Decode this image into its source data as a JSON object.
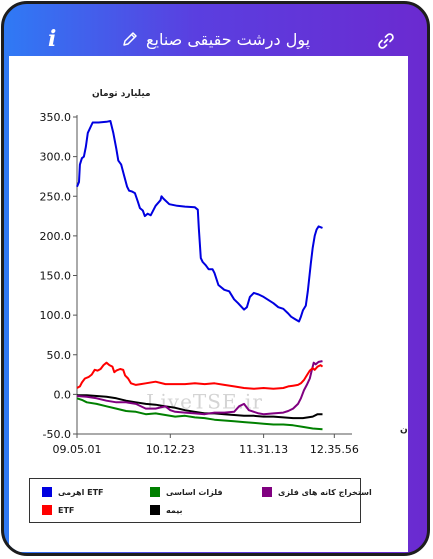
{
  "header": {
    "title": "پول درشت حقیقی صنایع",
    "info_glyph": "i",
    "icons": [
      "info-icon",
      "pencil-icon",
      "link-icon"
    ]
  },
  "colors": {
    "header_gradient_start": "#2f7af5",
    "header_gradient_end": "#6b2ad0",
    "etf_stocks": "#0000e0",
    "etf": "#ff0000",
    "basic_metals": "#008000",
    "insurance": "#000000",
    "metal_mining": "#800080"
  },
  "watermark": "LiveTSE.ir",
  "chart_data": {
    "type": "line",
    "title": "",
    "ylabel": "میلیارد تومان",
    "xlabel": "زمان",
    "ylim": [
      -50,
      350
    ],
    "yticks": [
      "350.0",
      "300.0",
      "250.0",
      "200.0",
      "150.0",
      "100.0",
      "50.0",
      "0.0",
      "-50.0"
    ],
    "xlim": [
      0,
      280
    ],
    "xticks": [
      {
        "x": 0,
        "label": "09.05.01"
      },
      {
        "x": 95,
        "label": "10.12.23"
      },
      {
        "x": 190,
        "label": "11.31.13"
      },
      {
        "x": 262,
        "label": "12.35.56"
      }
    ],
    "grid": false,
    "legend_placement": "bottom",
    "series": [
      {
        "name": "ETF اهرمی",
        "color": "#0000e0",
        "points": [
          [
            0,
            262
          ],
          [
            2,
            268
          ],
          [
            3,
            290
          ],
          [
            5,
            298
          ],
          [
            7,
            300
          ],
          [
            9,
            312
          ],
          [
            11,
            330
          ],
          [
            14,
            338
          ],
          [
            16,
            343
          ],
          [
            22,
            343
          ],
          [
            30,
            344
          ],
          [
            34,
            345
          ],
          [
            37,
            330
          ],
          [
            40,
            310
          ],
          [
            42,
            295
          ],
          [
            45,
            290
          ],
          [
            48,
            276
          ],
          [
            51,
            262
          ],
          [
            53,
            257
          ],
          [
            56,
            256
          ],
          [
            59,
            254
          ],
          [
            62,
            243
          ],
          [
            64,
            235
          ],
          [
            67,
            232
          ],
          [
            69,
            225
          ],
          [
            72,
            228
          ],
          [
            75,
            226
          ],
          [
            80,
            238
          ],
          [
            85,
            245
          ],
          [
            86,
            250
          ],
          [
            88,
            247
          ],
          [
            94,
            240
          ],
          [
            102,
            238
          ],
          [
            110,
            237
          ],
          [
            120,
            236
          ],
          [
            123,
            233
          ],
          [
            124,
            210
          ],
          [
            126,
            172
          ],
          [
            128,
            167
          ],
          [
            131,
            163
          ],
          [
            134,
            158
          ],
          [
            138,
            158
          ],
          [
            140,
            153
          ],
          [
            144,
            138
          ],
          [
            150,
            132
          ],
          [
            155,
            130
          ],
          [
            160,
            120
          ],
          [
            164,
            115
          ],
          [
            170,
            107
          ],
          [
            173,
            110
          ],
          [
            176,
            123
          ],
          [
            180,
            128
          ],
          [
            185,
            126
          ],
          [
            190,
            123
          ],
          [
            195,
            119
          ],
          [
            200,
            115
          ],
          [
            205,
            110
          ],
          [
            210,
            108
          ],
          [
            215,
            102
          ],
          [
            218,
            98
          ],
          [
            222,
            95
          ],
          [
            226,
            92
          ],
          [
            228,
            98
          ],
          [
            230,
            106
          ],
          [
            233,
            112
          ],
          [
            235,
            130
          ],
          [
            238,
            165
          ],
          [
            240,
            185
          ],
          [
            242,
            200
          ],
          [
            244,
            208
          ],
          [
            246,
            212
          ],
          [
            250,
            210
          ]
        ]
      },
      {
        "name": "ETF",
        "color": "#ff0000",
        "points": [
          [
            0,
            8
          ],
          [
            3,
            10
          ],
          [
            5,
            15
          ],
          [
            8,
            20
          ],
          [
            12,
            22
          ],
          [
            15,
            25
          ],
          [
            18,
            31
          ],
          [
            21,
            30
          ],
          [
            24,
            32
          ],
          [
            27,
            37
          ],
          [
            30,
            40
          ],
          [
            33,
            37
          ],
          [
            36,
            35
          ],
          [
            38,
            28
          ],
          [
            40,
            30
          ],
          [
            44,
            32
          ],
          [
            47,
            31
          ],
          [
            49,
            24
          ],
          [
            52,
            20
          ],
          [
            55,
            14
          ],
          [
            60,
            12
          ],
          [
            65,
            13
          ],
          [
            70,
            14
          ],
          [
            80,
            16
          ],
          [
            90,
            13
          ],
          [
            100,
            13
          ],
          [
            110,
            13
          ],
          [
            120,
            14
          ],
          [
            130,
            13
          ],
          [
            140,
            14
          ],
          [
            150,
            12
          ],
          [
            160,
            10
          ],
          [
            170,
            8
          ],
          [
            180,
            7
          ],
          [
            190,
            8
          ],
          [
            200,
            7
          ],
          [
            210,
            8
          ],
          [
            215,
            10
          ],
          [
            220,
            11
          ],
          [
            225,
            12
          ],
          [
            228,
            14
          ],
          [
            231,
            18
          ],
          [
            234,
            24
          ],
          [
            237,
            30
          ],
          [
            240,
            33
          ],
          [
            242,
            31
          ],
          [
            245,
            35
          ],
          [
            248,
            37
          ],
          [
            250,
            35
          ]
        ]
      },
      {
        "name": "فلزات اساسی",
        "color": "#008000",
        "points": [
          [
            0,
            -5
          ],
          [
            5,
            -7
          ],
          [
            10,
            -10
          ],
          [
            20,
            -12
          ],
          [
            30,
            -15
          ],
          [
            40,
            -18
          ],
          [
            50,
            -21
          ],
          [
            60,
            -22
          ],
          [
            70,
            -25
          ],
          [
            80,
            -24
          ],
          [
            90,
            -26
          ],
          [
            100,
            -28
          ],
          [
            110,
            -27
          ],
          [
            120,
            -29
          ],
          [
            130,
            -30
          ],
          [
            140,
            -32
          ],
          [
            150,
            -33
          ],
          [
            160,
            -34
          ],
          [
            170,
            -35
          ],
          [
            180,
            -36
          ],
          [
            190,
            -37
          ],
          [
            200,
            -38
          ],
          [
            210,
            -38
          ],
          [
            220,
            -39
          ],
          [
            230,
            -41
          ],
          [
            240,
            -43
          ],
          [
            250,
            -44
          ]
        ]
      },
      {
        "name": "بیمه",
        "color": "#000000",
        "points": [
          [
            0,
            -1
          ],
          [
            10,
            -1
          ],
          [
            20,
            -2
          ],
          [
            30,
            -3
          ],
          [
            40,
            -5
          ],
          [
            50,
            -8
          ],
          [
            60,
            -10
          ],
          [
            70,
            -12
          ],
          [
            80,
            -13
          ],
          [
            90,
            -15
          ],
          [
            100,
            -17
          ],
          [
            110,
            -20
          ],
          [
            120,
            -22
          ],
          [
            130,
            -24
          ],
          [
            140,
            -24
          ],
          [
            150,
            -25
          ],
          [
            160,
            -26
          ],
          [
            170,
            -27
          ],
          [
            180,
            -27
          ],
          [
            190,
            -28
          ],
          [
            200,
            -28
          ],
          [
            210,
            -29
          ],
          [
            220,
            -30
          ],
          [
            230,
            -30
          ],
          [
            240,
            -28
          ],
          [
            245,
            -25
          ],
          [
            250,
            -25
          ]
        ]
      },
      {
        "name": "استخراج کانه های فلزی",
        "color": "#800080",
        "points": [
          [
            0,
            -2
          ],
          [
            10,
            -3
          ],
          [
            20,
            -5
          ],
          [
            30,
            -8
          ],
          [
            40,
            -10
          ],
          [
            50,
            -10
          ],
          [
            60,
            -12
          ],
          [
            70,
            -18
          ],
          [
            80,
            -18
          ],
          [
            90,
            -15
          ],
          [
            95,
            -20
          ],
          [
            100,
            -22
          ],
          [
            110,
            -23
          ],
          [
            120,
            -24
          ],
          [
            130,
            -25
          ],
          [
            140,
            -23
          ],
          [
            150,
            -23
          ],
          [
            160,
            -22
          ],
          [
            165,
            -15
          ],
          [
            170,
            -12
          ],
          [
            175,
            -20
          ],
          [
            185,
            -24
          ],
          [
            190,
            -25
          ],
          [
            200,
            -24
          ],
          [
            210,
            -23
          ],
          [
            215,
            -21
          ],
          [
            220,
            -18
          ],
          [
            225,
            -12
          ],
          [
            228,
            -5
          ],
          [
            231,
            5
          ],
          [
            234,
            12
          ],
          [
            237,
            20
          ],
          [
            239,
            30
          ],
          [
            241,
            40
          ],
          [
            243,
            38
          ],
          [
            246,
            41
          ],
          [
            250,
            42
          ]
        ]
      }
    ]
  },
  "legend": {
    "items": [
      {
        "label": "ETF اهرمی",
        "color": "#0000e0"
      },
      {
        "label": "فلزات اساسی",
        "color": "#008000"
      },
      {
        "label": "استخراج کانه های فلزی",
        "color": "#800080"
      },
      {
        "label": "ETF",
        "color": "#ff0000"
      },
      {
        "label": "بیمه",
        "color": "#000000"
      }
    ]
  }
}
